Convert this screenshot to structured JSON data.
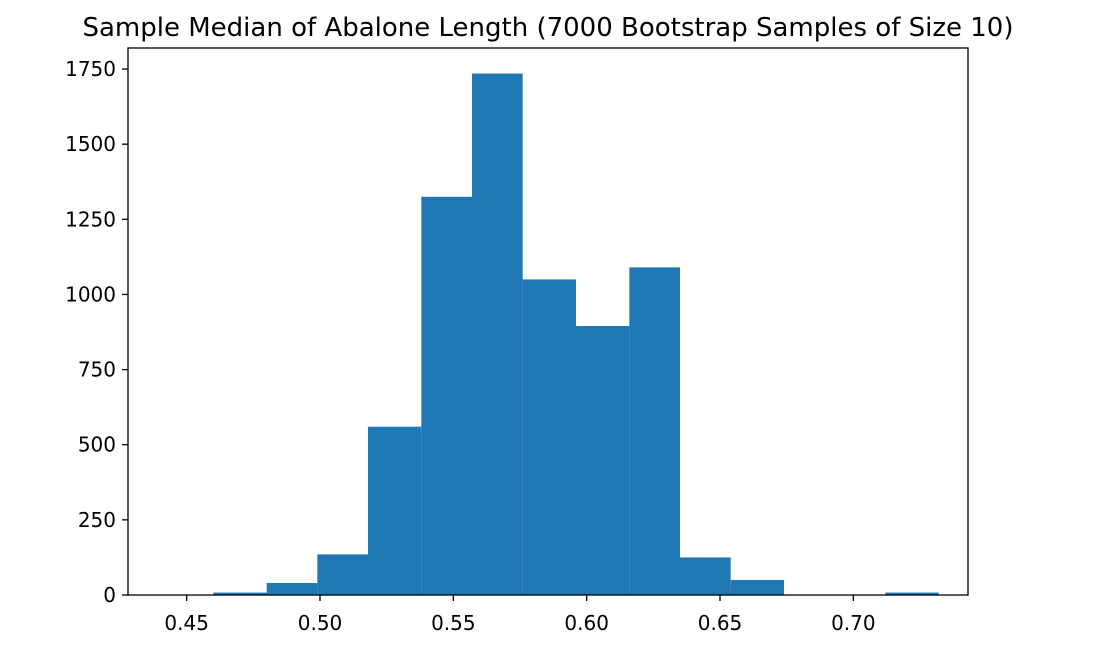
{
  "chart_data": {
    "type": "bar",
    "title": "Sample Median of Abalone Length (7000 Bootstrap Samples of Size 10)",
    "xlabel": "",
    "ylabel": "",
    "xlim": [
      0.428,
      0.743
    ],
    "ylim": [
      0,
      1820
    ],
    "xticks": [
      0.45,
      0.5,
      0.55,
      0.6,
      0.65,
      0.7
    ],
    "xtick_labels": [
      "0.45",
      "0.50",
      "0.55",
      "0.60",
      "0.65",
      "0.70"
    ],
    "yticks": [
      0,
      250,
      500,
      750,
      1000,
      1250,
      1500,
      1750
    ],
    "ytick_labels": [
      "0",
      "250",
      "500",
      "750",
      "1000",
      "1250",
      "1500",
      "1750"
    ],
    "bar_color": "#1f77b4",
    "grid": false,
    "bins": [
      {
        "x0": 0.44,
        "x1": 0.46,
        "count": 0
      },
      {
        "x0": 0.46,
        "x1": 0.48,
        "count": 8
      },
      {
        "x0": 0.48,
        "x1": 0.499,
        "count": 40
      },
      {
        "x0": 0.499,
        "x1": 0.518,
        "count": 135
      },
      {
        "x0": 0.518,
        "x1": 0.538,
        "count": 560
      },
      {
        "x0": 0.538,
        "x1": 0.557,
        "count": 1325
      },
      {
        "x0": 0.557,
        "x1": 0.576,
        "count": 1735
      },
      {
        "x0": 0.576,
        "x1": 0.596,
        "count": 1050
      },
      {
        "x0": 0.596,
        "x1": 0.616,
        "count": 895
      },
      {
        "x0": 0.616,
        "x1": 0.635,
        "count": 1090
      },
      {
        "x0": 0.635,
        "x1": 0.654,
        "count": 125
      },
      {
        "x0": 0.654,
        "x1": 0.674,
        "count": 50
      },
      {
        "x0": 0.674,
        "x1": 0.693,
        "count": 0
      },
      {
        "x0": 0.693,
        "x1": 0.712,
        "count": 0
      },
      {
        "x0": 0.712,
        "x1": 0.732,
        "count": 8
      }
    ]
  }
}
